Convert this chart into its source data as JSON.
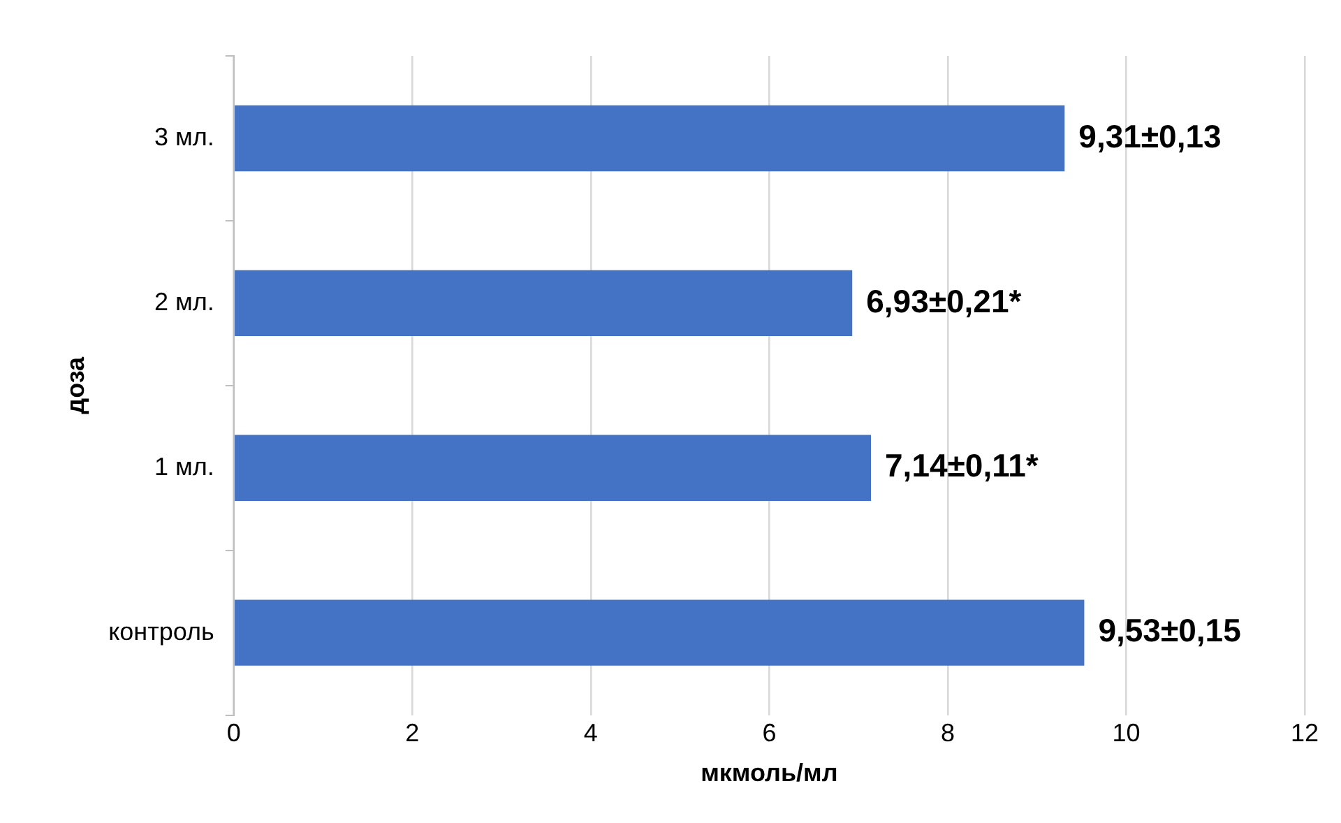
{
  "chart_data": {
    "type": "bar",
    "orientation": "horizontal",
    "xlabel": "мкмоль/мл",
    "ylabel": "доза",
    "categories": [
      "3 мл.",
      "2 мл.",
      "1 мл.",
      "контроль"
    ],
    "values": [
      9.31,
      6.93,
      7.14,
      9.53
    ],
    "value_labels": [
      "9,31±0,13",
      "6,93±0,21*",
      "7,14±0,11*",
      "9,53±0,15"
    ],
    "color": "#4472c4",
    "xlim": [
      0,
      12
    ],
    "xticks": [
      0,
      2,
      4,
      6,
      8,
      10,
      12
    ],
    "grid": "x",
    "legend": false
  }
}
